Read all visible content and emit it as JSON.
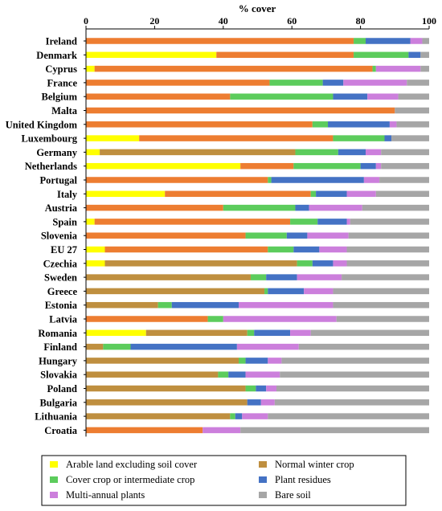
{
  "chart_data": {
    "type": "bar",
    "orientation": "horizontal",
    "stacked": true,
    "title": "",
    "xlabel": "% cover",
    "ylabel": "",
    "xlim": [
      0,
      100
    ],
    "xticks": [
      0,
      20,
      40,
      60,
      80,
      100
    ],
    "axis_position": "top",
    "grid": false,
    "legend_position": "bottom",
    "categories": [
      "Ireland",
      "Denmark",
      "Cyprus",
      "France",
      "Belgium",
      "Malta",
      "United Kingdom",
      "Luxembourg",
      "Germany",
      "Netherlands",
      "Portugal",
      "Italy",
      "Austria",
      "Spain",
      "Slovenia",
      "EU 27",
      "Czechia",
      "Sweden",
      "Greece",
      "Estonia",
      "Latvia",
      "Romania",
      "Finland",
      "Hungary",
      "Slovakia",
      "Poland",
      "Bulgaria",
      "Lithuania",
      "Croatia"
    ],
    "series": [
      {
        "name": "Arable land excluding soil cover",
        "color": "#ffff00",
        "values": [
          0,
          38,
          2.5,
          0,
          0,
          0,
          0,
          15.5,
          4,
          45,
          0,
          23,
          0,
          2.5,
          0,
          5.5,
          5.5,
          0,
          0,
          0,
          0,
          17.5,
          0,
          0,
          0,
          0,
          0,
          0,
          0
        ]
      },
      {
        "name": "Normal winter crop",
        "color": "#ed7d31",
        "values": [
          78,
          40,
          81,
          53.5,
          42,
          90,
          66,
          56.5,
          0,
          15.5,
          53,
          42.5,
          40,
          57,
          46.5,
          47.5,
          0,
          0,
          0,
          0,
          35.5,
          0,
          0,
          0,
          0,
          0,
          0,
          0,
          34
        ]
      },
      {
        "name": "Normal winter crop (alt)",
        "color": "#bf8f3f",
        "values": [
          0,
          0,
          0,
          0,
          0,
          0,
          0,
          0,
          57,
          0,
          0,
          0,
          0,
          0,
          0,
          0,
          56,
          48,
          52,
          21,
          0,
          29.5,
          5,
          44.5,
          38.5,
          46.5,
          47,
          42,
          0
        ]
      },
      {
        "name": "Cover crop or intermediate crop",
        "color": "#5ccc5c",
        "values": [
          3.5,
          16,
          1,
          15.5,
          30,
          0,
          4.5,
          15,
          12.5,
          19.5,
          1,
          1.5,
          21,
          8,
          12,
          7.5,
          4.5,
          4.5,
          1,
          4,
          4.5,
          2,
          8,
          2,
          3,
          3,
          0,
          1.5,
          0
        ]
      },
      {
        "name": "Plant residues",
        "color": "#4472c4",
        "values": [
          13,
          3.5,
          0,
          6,
          10,
          0,
          18,
          2,
          8,
          4.5,
          27,
          9,
          4,
          8.5,
          6,
          7.5,
          6,
          9,
          10.5,
          19.5,
          0,
          10.5,
          31,
          6.5,
          5,
          3,
          4,
          2,
          0
        ]
      },
      {
        "name": "Multi-annual plants",
        "color": "#cc7fdc",
        "values": [
          3.5,
          0,
          13,
          18.5,
          9,
          0,
          2,
          0,
          4.5,
          1.5,
          4.5,
          8.5,
          15.5,
          1,
          12,
          8,
          4,
          13,
          8.5,
          27.5,
          33,
          6,
          18,
          4,
          10,
          3,
          4,
          7.5,
          11
        ]
      },
      {
        "name": "Bare soil",
        "color": "#a6a6a6",
        "values": [
          2,
          2.5,
          2.5,
          6.5,
          9,
          10,
          9.5,
          11,
          14,
          14,
          14.5,
          15.5,
          19.5,
          23,
          23.5,
          24,
          24,
          25.5,
          28,
          28,
          27,
          34.5,
          38,
          43,
          43.5,
          44.5,
          45,
          47,
          55
        ]
      }
    ]
  },
  "legend": [
    {
      "label": "Arable land excluding soil cover",
      "color": "#ffff00"
    },
    {
      "label": "Normal winter crop",
      "color": "#bf8f3f"
    },
    {
      "label": "Cover crop or intermediate crop",
      "color": "#5ccc5c"
    },
    {
      "label": "Plant residues",
      "color": "#4472c4"
    },
    {
      "label": "Multi-annual plants",
      "color": "#cc7fdc"
    },
    {
      "label": "Bare soil",
      "color": "#a6a6a6"
    }
  ]
}
